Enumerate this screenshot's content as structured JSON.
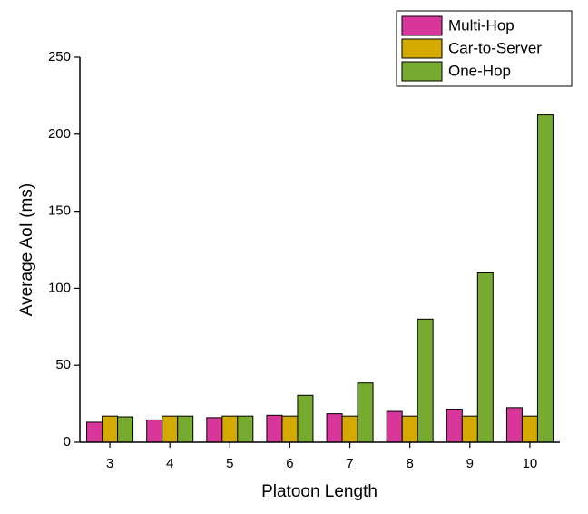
{
  "chart_data": {
    "type": "bar",
    "xlabel": "Platoon Length",
    "ylabel": "Average AoI (ms)",
    "categories": [
      "3",
      "4",
      "5",
      "6",
      "7",
      "8",
      "9",
      "10"
    ],
    "series": [
      {
        "name": "Multi-Hop",
        "color": "#d8369b",
        "values": [
          13,
          14.5,
          16,
          17.5,
          18.5,
          20,
          21.5,
          22.5
        ]
      },
      {
        "name": "Car-to-Server",
        "color": "#d4aa00",
        "values": [
          17,
          17,
          17,
          17,
          17,
          17,
          17,
          17
        ]
      },
      {
        "name": "One-Hop",
        "color": "#76ab2f",
        "values": [
          16.5,
          17,
          17,
          30.5,
          38.5,
          80,
          110,
          212.5
        ]
      }
    ],
    "ylim": [
      0,
      250
    ],
    "yticks": [
      0,
      50,
      100,
      150,
      200,
      250
    ],
    "legend": "upper right"
  }
}
